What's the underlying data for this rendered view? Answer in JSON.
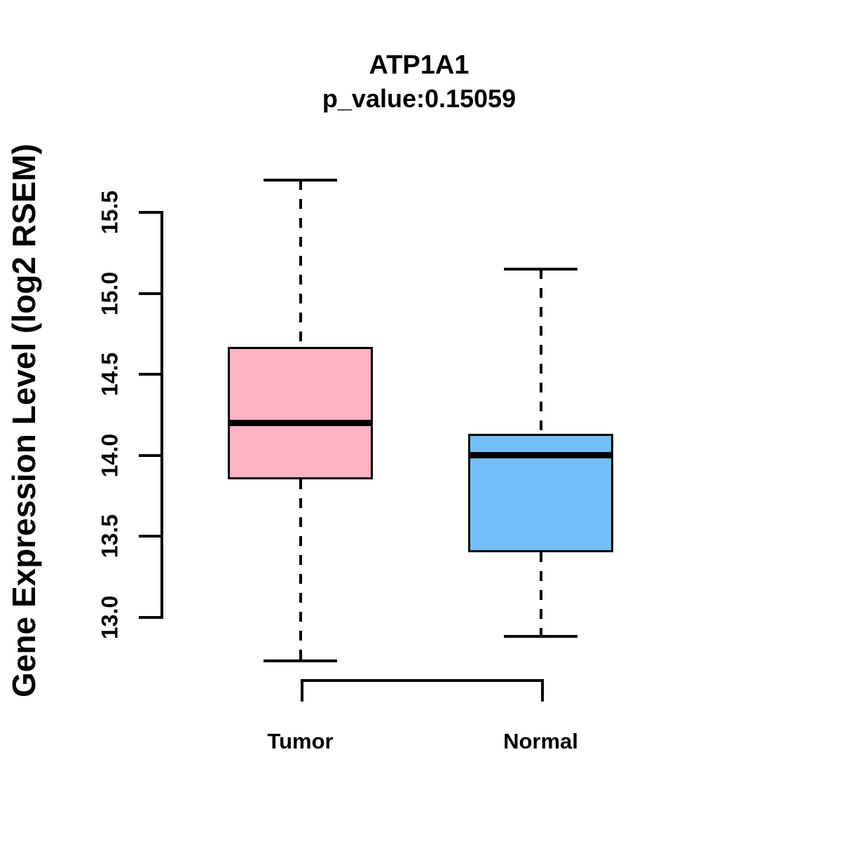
{
  "header": {
    "title": "ATP1A1",
    "subtitle": "p_value:0.15059"
  },
  "chart_data": {
    "type": "boxplot",
    "title": "ATP1A1",
    "subtitle": "p_value:0.15059",
    "ylabel": "Gene Expression Level (log2 RSEM)",
    "xlabel": "",
    "categories": [
      "Tumor",
      "Normal"
    ],
    "ytick_values": [
      13.0,
      13.5,
      14.0,
      14.5,
      15.0,
      15.5
    ],
    "ytick_labels": [
      "13.0",
      "13.5",
      "14.0",
      "14.5",
      "15.0",
      "15.5"
    ],
    "axis_range": [
      13.0,
      15.5
    ],
    "grid": false,
    "legend_position": "none",
    "series": [
      {
        "name": "Tumor",
        "whisker_low": 12.73,
        "q1": 13.85,
        "median": 14.2,
        "q3": 14.67,
        "whisker_high": 15.7,
        "fill_color": "#FFB3C2"
      },
      {
        "name": "Normal",
        "whisker_low": 12.88,
        "q1": 13.4,
        "median": 14.0,
        "q3": 14.13,
        "whisker_high": 15.15,
        "fill_color": "#74BFF7"
      }
    ],
    "colors": {
      "stroke": "#000000",
      "background": "#FFFFFF"
    }
  }
}
